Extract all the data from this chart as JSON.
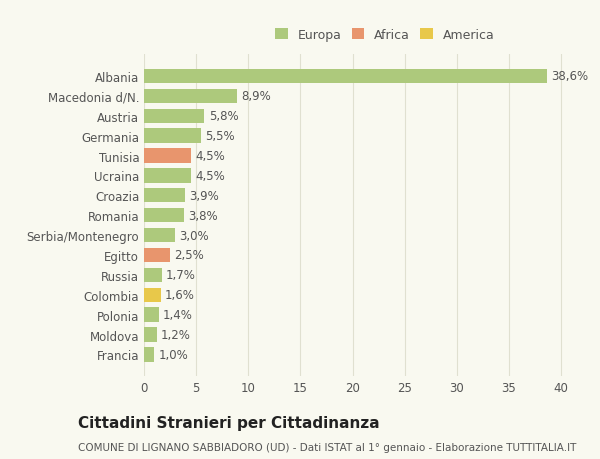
{
  "categories": [
    "Albania",
    "Macedonia d/N.",
    "Austria",
    "Germania",
    "Tunisia",
    "Ucraina",
    "Croazia",
    "Romania",
    "Serbia/Montenegro",
    "Egitto",
    "Russia",
    "Colombia",
    "Polonia",
    "Moldova",
    "Francia"
  ],
  "values": [
    38.6,
    8.9,
    5.8,
    5.5,
    4.5,
    4.5,
    3.9,
    3.8,
    3.0,
    2.5,
    1.7,
    1.6,
    1.4,
    1.2,
    1.0
  ],
  "labels": [
    "38,6%",
    "8,9%",
    "5,8%",
    "5,5%",
    "4,5%",
    "4,5%",
    "3,9%",
    "3,8%",
    "3,0%",
    "2,5%",
    "1,7%",
    "1,6%",
    "1,4%",
    "1,2%",
    "1,0%"
  ],
  "continents": [
    "Europa",
    "Europa",
    "Europa",
    "Europa",
    "Africa",
    "Europa",
    "Europa",
    "Europa",
    "Europa",
    "Africa",
    "Europa",
    "America",
    "Europa",
    "Europa",
    "Europa"
  ],
  "colors": {
    "Europa": "#adc97c",
    "Africa": "#e8956d",
    "America": "#e8c84a"
  },
  "xlim": [
    0,
    42
  ],
  "xticks": [
    0,
    5,
    10,
    15,
    20,
    25,
    30,
    35,
    40
  ],
  "title": "Cittadini Stranieri per Cittadinanza",
  "subtitle": "COMUNE DI LIGNANO SABBIADORO (UD) - Dati ISTAT al 1° gennaio - Elaborazione TUTTITALIA.IT",
  "background_color": "#f9f9f0",
  "grid_color": "#e0e0d0",
  "text_color": "#555555",
  "bar_height": 0.72,
  "label_fontsize": 8.5,
  "tick_fontsize": 8.5,
  "title_fontsize": 11,
  "subtitle_fontsize": 7.5
}
